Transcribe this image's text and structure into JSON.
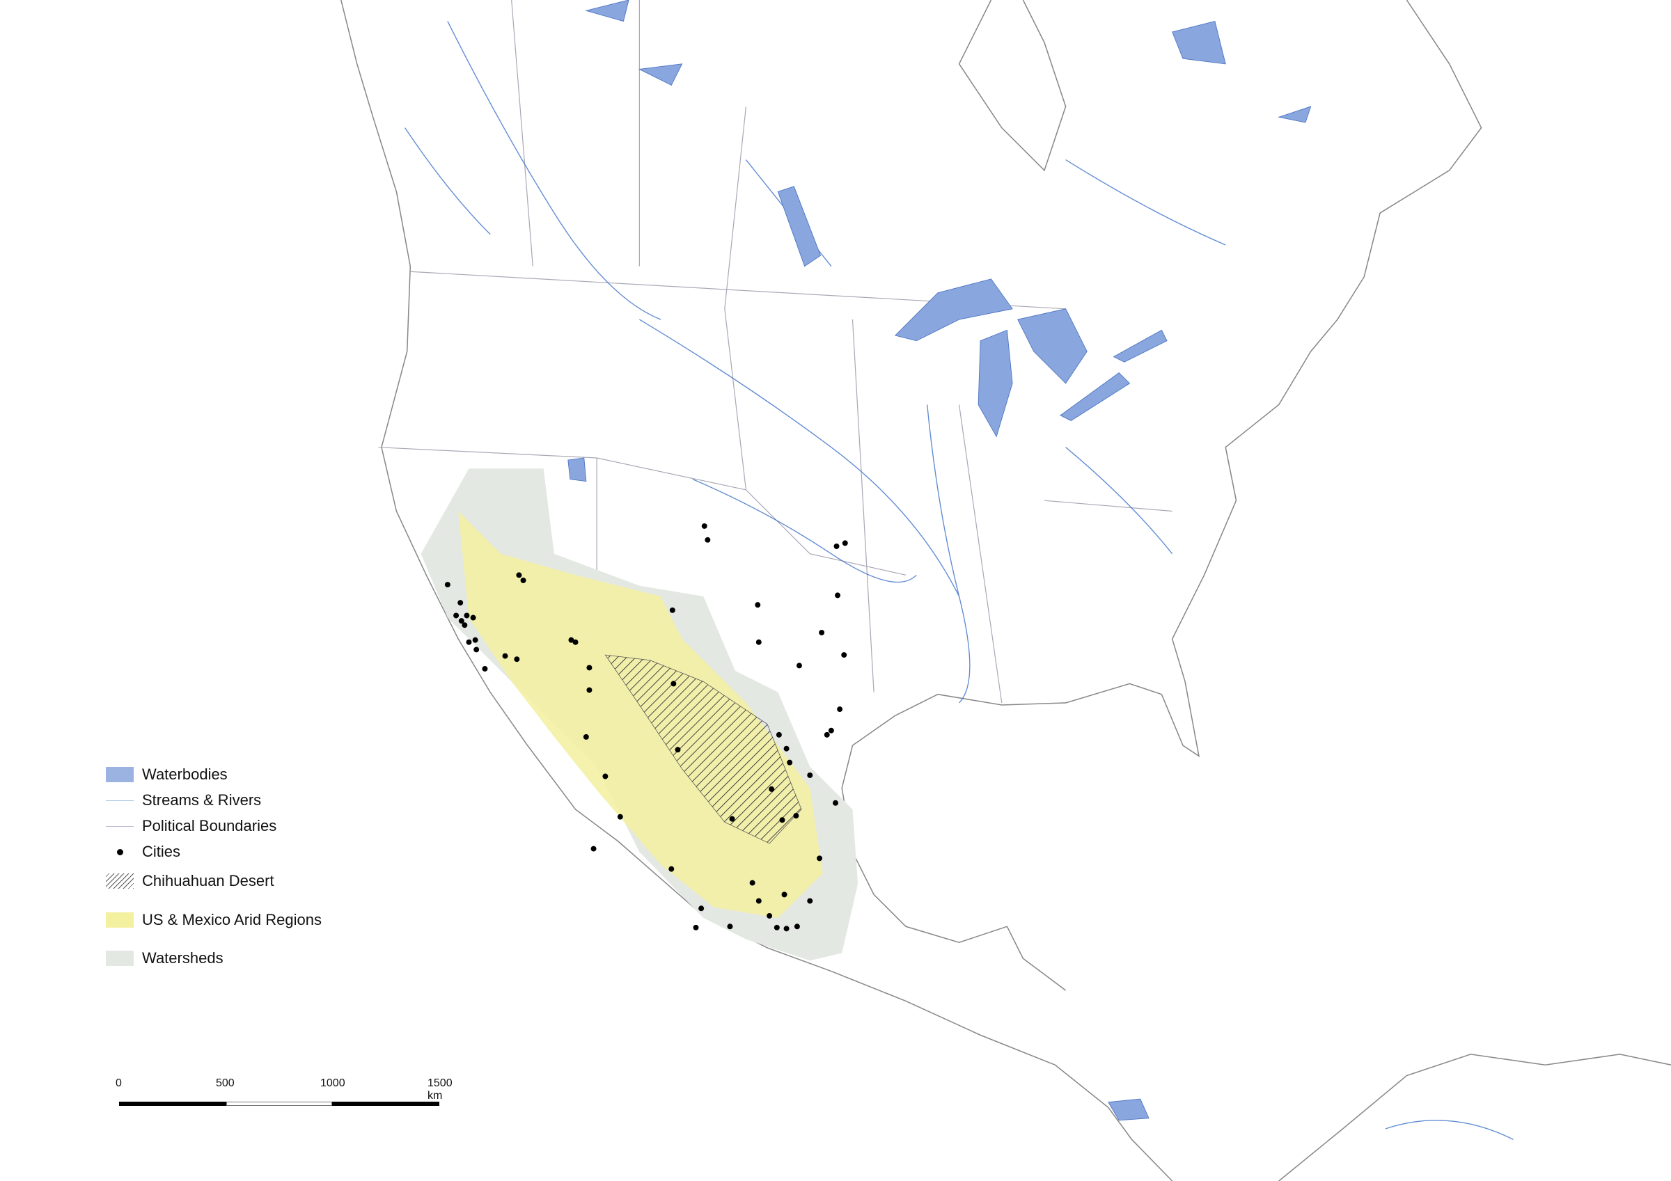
{
  "colors": {
    "waterbodies": "#9bb3e0",
    "streams": "#3a6fc9",
    "boundaries": "#a9a9b8",
    "cities": "#000000",
    "arid": "#f3f0a0",
    "watersheds": "#e3e8e3"
  },
  "legend": {
    "items": [
      {
        "label": "Waterbodies",
        "symbol": "fill"
      },
      {
        "label": "Streams & Rivers",
        "symbol": "line"
      },
      {
        "label": "Political Boundaries",
        "symbol": "line"
      },
      {
        "label": "Cities",
        "symbol": "dot"
      },
      {
        "label": "Chihuahuan Desert",
        "symbol": "hatch"
      },
      {
        "label": "US & Mexico Arid Regions",
        "symbol": "fill"
      },
      {
        "label": "Watersheds",
        "symbol": "fill"
      }
    ]
  },
  "scale_bar": {
    "ticks": [
      "0",
      "500",
      "1000",
      "1500 km"
    ]
  }
}
